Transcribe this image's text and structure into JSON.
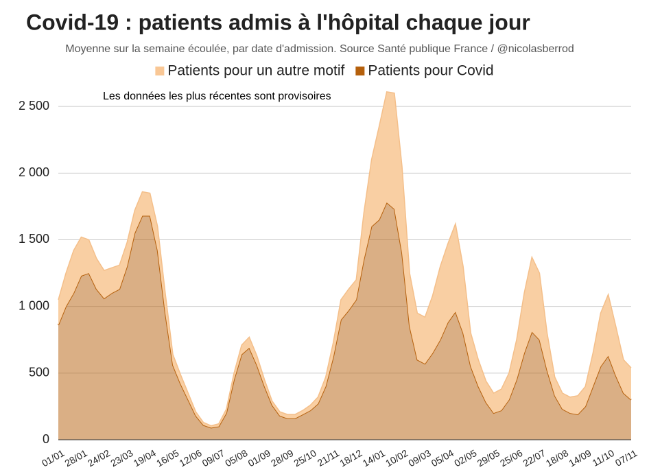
{
  "chart_data": {
    "type": "stacked-area",
    "title": "Covid-19 : patients admis à l'hôpital chaque jour",
    "subtitle": "Moyenne sur la semaine écoulée, par date d'admission. Source Santé publique France / @nicolasberrod",
    "annotation": "Les données les plus récentes sont provisoires",
    "categories": [
      "01/01",
      null,
      null,
      "28/01",
      null,
      null,
      "24/02",
      null,
      null,
      "23/03",
      null,
      null,
      "19/04",
      null,
      null,
      "16/05",
      null,
      null,
      "12/06",
      null,
      null,
      "09/07",
      null,
      null,
      "05/08",
      null,
      null,
      "01/09",
      null,
      null,
      "28/09",
      null,
      null,
      "25/10",
      null,
      null,
      "21/11",
      null,
      null,
      "18/12",
      null,
      null,
      "14/01",
      null,
      null,
      "10/02",
      null,
      null,
      "09/03",
      null,
      null,
      "05/04",
      null,
      null,
      "02/05",
      null,
      null,
      "29/05",
      null,
      null,
      "25/06",
      null,
      null,
      "22/07",
      null,
      null,
      "18/08",
      null,
      null,
      "14/09",
      null,
      null,
      "11/10",
      null,
      null,
      "07/11"
    ],
    "series": [
      {
        "name": "Patients pour un autre motif",
        "color": "#f9cfa3",
        "values": [
          190,
          250,
          320,
          290,
          250,
          230,
          210,
          190,
          180,
          180,
          170,
          180,
          170,
          180,
          150,
          80,
          70,
          50,
          30,
          20,
          15,
          20,
          30,
          50,
          70,
          80,
          70,
          50,
          30,
          30,
          30,
          30,
          30,
          40,
          50,
          70,
          110,
          150,
          160,
          150,
          350,
          500,
          700,
          830,
          870,
          650,
          400,
          350,
          350,
          430,
          550,
          590,
          660,
          500,
          250,
          200,
          160,
          150,
          160,
          200,
          300,
          450,
          560,
          500,
          280,
          140,
          120,
          120,
          140,
          150,
          250,
          400,
          460,
          370,
          250,
          240
        ]
      },
      {
        "name": "Patients pour Covid",
        "color": "#b5600c",
        "values": [
          860,
          1000,
          1100,
          1230,
          1250,
          1130,
          1060,
          1100,
          1130,
          1300,
          1550,
          1680,
          1680,
          1420,
          950,
          560,
          420,
          300,
          180,
          110,
          90,
          100,
          200,
          450,
          640,
          690,
          560,
          400,
          260,
          180,
          160,
          160,
          190,
          220,
          270,
          400,
          620,
          900,
          970,
          1050,
          1350,
          1600,
          1650,
          1780,
          1730,
          1400,
          850,
          600,
          570,
          650,
          750,
          880,
          960,
          800,
          550,
          400,
          280,
          200,
          220,
          300,
          450,
          650,
          810,
          750,
          520,
          330,
          230,
          200,
          190,
          250,
          400,
          550,
          630,
          480,
          350,
          300
        ]
      }
    ],
    "ylim": [
      0,
      2650
    ],
    "yticks": [
      0,
      500,
      {
        "value": 1000,
        "label": "1 000"
      },
      {
        "value": 1500,
        "label": "1 500"
      },
      {
        "value": 2000,
        "label": "2 000"
      },
      {
        "value": 2500,
        "label": "2 500"
      }
    ],
    "grid": true
  }
}
